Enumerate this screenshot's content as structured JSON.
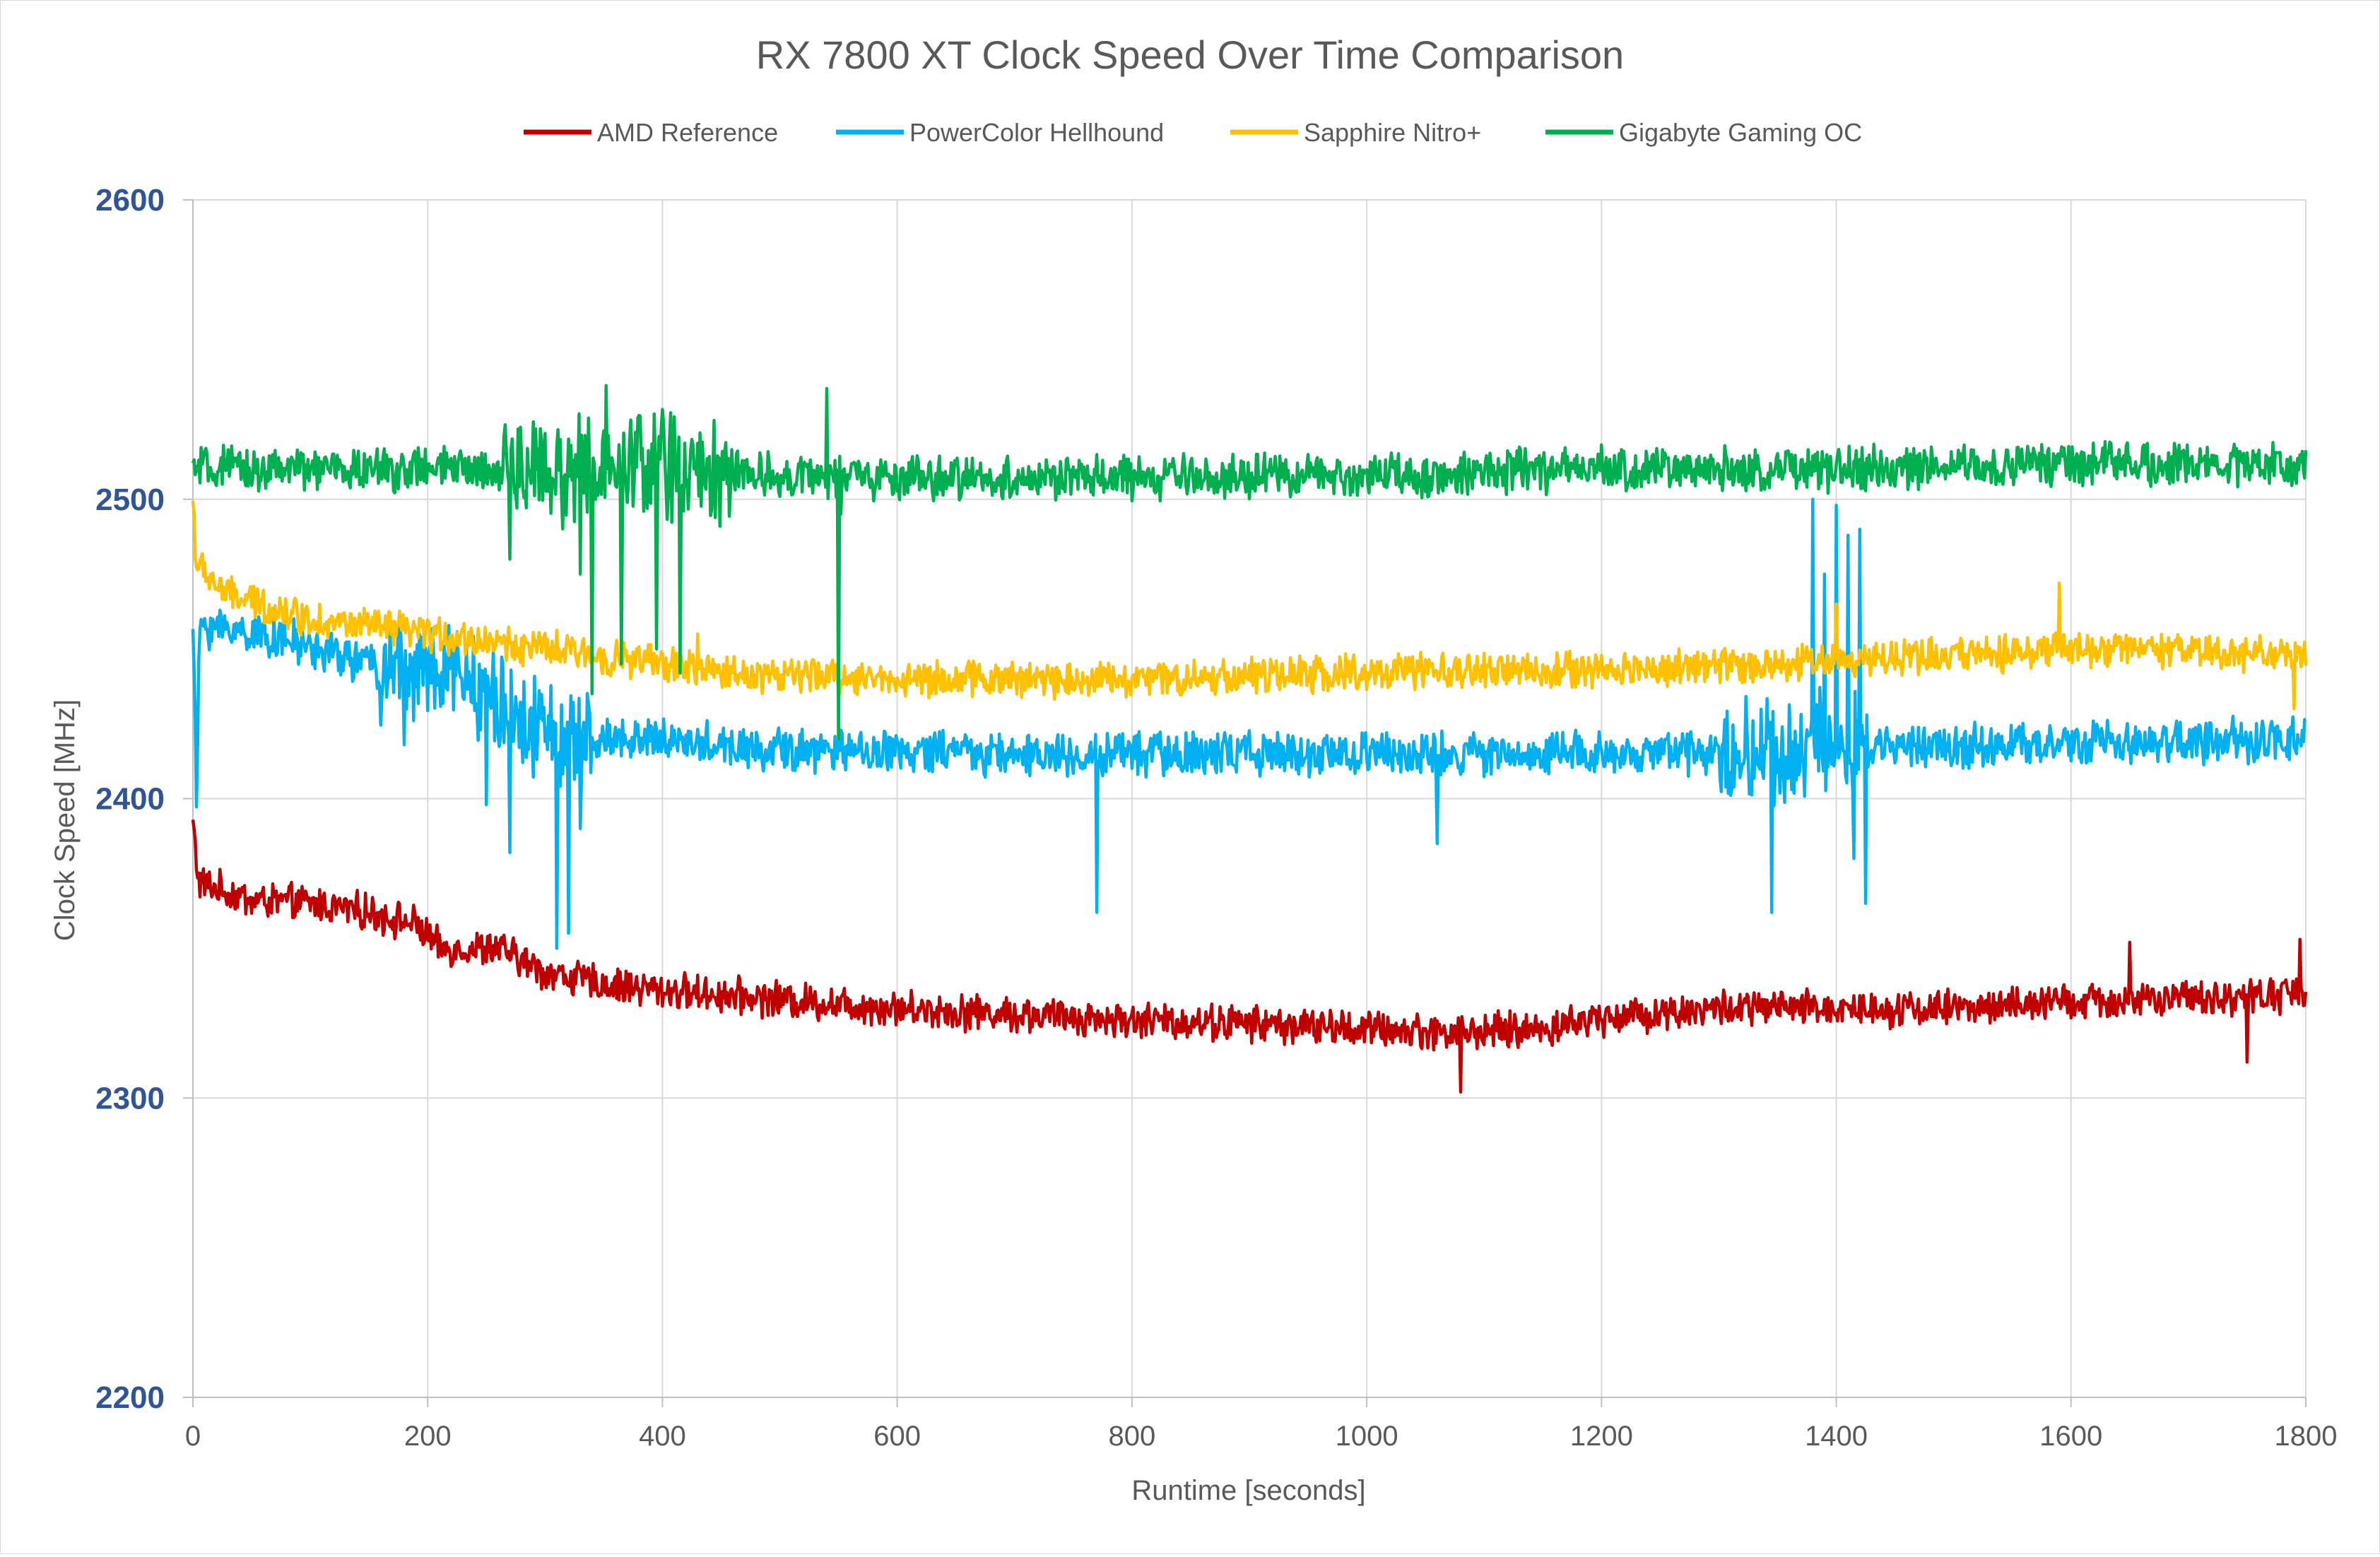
{
  "chart_data": {
    "type": "line",
    "title": "RX 7800 XT Clock Speed Over Time Comparison",
    "xlabel": "Runtime [seconds]",
    "ylabel": "Clock Speed [MHz]",
    "xlim": [
      0,
      1800
    ],
    "ylim": [
      2200,
      2600
    ],
    "x_ticks": [
      0,
      200,
      400,
      600,
      800,
      1000,
      1200,
      1400,
      1600,
      1800
    ],
    "x_tick_labels": [
      "0",
      "200",
      "400",
      "600",
      "800",
      "1000",
      "1200",
      "1400",
      "1600",
      "1800"
    ],
    "y_ticks": [
      2200,
      2300,
      2400,
      2500,
      2600
    ],
    "y_tick_labels": [
      "2200",
      "2300",
      "2400",
      "2500",
      "2600"
    ],
    "grid": true,
    "legend_position": "top",
    "series": [
      {
        "name": "AMD Reference",
        "color": "#c00000",
        "keypoints": [
          [
            0,
            2392
          ],
          [
            5,
            2372
          ],
          [
            50,
            2366
          ],
          [
            100,
            2365
          ],
          [
            150,
            2362
          ],
          [
            190,
            2358
          ],
          [
            210,
            2350
          ],
          [
            260,
            2350
          ],
          [
            300,
            2342
          ],
          [
            350,
            2338
          ],
          [
            400,
            2336
          ],
          [
            500,
            2333
          ],
          [
            600,
            2330
          ],
          [
            700,
            2328
          ],
          [
            800,
            2326
          ],
          [
            900,
            2325
          ],
          [
            1000,
            2323
          ],
          [
            1080,
            2322
          ],
          [
            1150,
            2323
          ],
          [
            1200,
            2327
          ],
          [
            1300,
            2330
          ],
          [
            1400,
            2330
          ],
          [
            1500,
            2330
          ],
          [
            1600,
            2332
          ],
          [
            1700,
            2333
          ],
          [
            1800,
            2335
          ]
        ],
        "noise": 5,
        "spikes": [
          [
            1080,
            2302
          ],
          [
            1650,
            2352
          ],
          [
            1750,
            2312
          ],
          [
            1795,
            2353
          ]
        ]
      },
      {
        "name": "PowerColor Hellhound",
        "color": "#00b0f0",
        "keypoints": [
          [
            0,
            2460
          ],
          [
            3,
            2400
          ],
          [
            6,
            2458
          ],
          [
            60,
            2455
          ],
          [
            150,
            2445
          ],
          [
            230,
            2440
          ],
          [
            280,
            2425
          ],
          [
            330,
            2418
          ],
          [
            360,
            2420
          ],
          [
            400,
            2420
          ],
          [
            500,
            2416
          ],
          [
            700,
            2415
          ],
          [
            900,
            2415
          ],
          [
            1100,
            2415
          ],
          [
            1300,
            2415
          ],
          [
            1450,
            2418
          ],
          [
            1600,
            2418
          ],
          [
            1800,
            2420
          ]
        ],
        "noise": 6,
        "spikes": [
          [
            180,
            2418
          ],
          [
            250,
            2398
          ],
          [
            270,
            2382
          ],
          [
            310,
            2350
          ],
          [
            320,
            2355
          ],
          [
            330,
            2390
          ],
          [
            770,
            2362
          ],
          [
            1060,
            2385
          ],
          [
            1345,
            2362
          ],
          [
            1380,
            2500
          ],
          [
            1390,
            2475
          ],
          [
            1400,
            2498
          ],
          [
            1410,
            2488
          ],
          [
            1415,
            2380
          ],
          [
            1420,
            2490
          ],
          [
            1425,
            2365
          ]
        ]
      },
      {
        "name": "Sapphire Nitro+",
        "color": "#ffc000",
        "keypoints": [
          [
            0,
            2500
          ],
          [
            3,
            2478
          ],
          [
            30,
            2468
          ],
          [
            100,
            2460
          ],
          [
            200,
            2455
          ],
          [
            300,
            2450
          ],
          [
            340,
            2448
          ],
          [
            380,
            2446
          ],
          [
            450,
            2442
          ],
          [
            600,
            2440
          ],
          [
            800,
            2440
          ],
          [
            1000,
            2442
          ],
          [
            1200,
            2443
          ],
          [
            1350,
            2445
          ],
          [
            1420,
            2447
          ],
          [
            1500,
            2448
          ],
          [
            1600,
            2450
          ],
          [
            1800,
            2448
          ]
        ],
        "noise": 5,
        "spikes": [
          [
            430,
            2455
          ],
          [
            1400,
            2465
          ],
          [
            1590,
            2472
          ],
          [
            1790,
            2430
          ]
        ]
      },
      {
        "name": "Gigabyte Gaming OC",
        "color": "#00b050",
        "keypoints": [
          [
            0,
            2510
          ],
          [
            100,
            2510
          ],
          [
            200,
            2510
          ],
          [
            300,
            2510
          ],
          [
            440,
            2510
          ],
          [
            500,
            2508
          ],
          [
            600,
            2507
          ],
          [
            800,
            2507
          ],
          [
            1000,
            2508
          ],
          [
            1200,
            2510
          ],
          [
            1400,
            2510
          ],
          [
            1600,
            2512
          ],
          [
            1800,
            2512
          ]
        ],
        "noise": 6,
        "spikes": [
          [
            270,
            2480
          ],
          [
            300,
            2522
          ],
          [
            330,
            2475
          ],
          [
            340,
            2435
          ],
          [
            352,
            2538
          ],
          [
            365,
            2445
          ],
          [
            380,
            2528
          ],
          [
            395,
            2450
          ],
          [
            400,
            2530
          ],
          [
            415,
            2442
          ],
          [
            425,
            2520
          ],
          [
            540,
            2537
          ],
          [
            550,
            2420
          ],
          [
            552,
            2495
          ]
        ]
      }
    ]
  }
}
